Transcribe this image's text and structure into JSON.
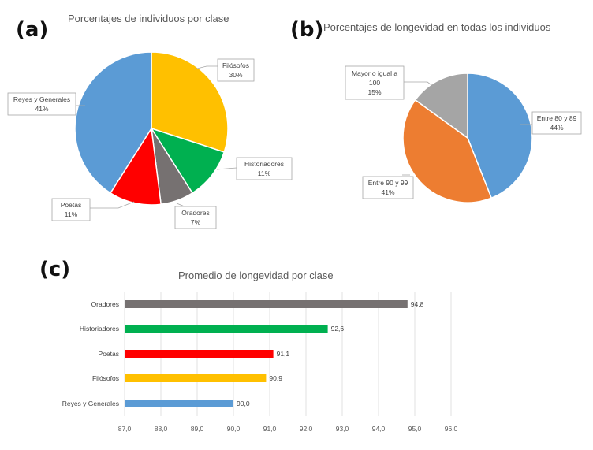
{
  "panels": {
    "a": "(a)",
    "b": "(b)",
    "c": "(c)"
  },
  "chart_data": [
    {
      "type": "pie",
      "title": "Porcentajes de individuos por clase",
      "slices": [
        {
          "label": "Filósofos",
          "value": 30,
          "display": "30%",
          "color": "#FFC000"
        },
        {
          "label": "Historiadores",
          "value": 11,
          "display": "11%",
          "color": "#00B050"
        },
        {
          "label": "Oradores",
          "value": 7,
          "display": "7%",
          "color": "#767171"
        },
        {
          "label": "Poetas",
          "value": 11,
          "display": "11%",
          "color": "#FF0000"
        },
        {
          "label": "Reyes y Generales",
          "value": 41,
          "display": "41%",
          "color": "#5B9BD5"
        }
      ]
    },
    {
      "type": "pie",
      "title": "Porcentajes de longevidad en todas los individuos",
      "slices": [
        {
          "label": "Entre 80 y 89",
          "value": 44,
          "display": "44%",
          "color": "#5B9BD5"
        },
        {
          "label": "Entre 90 y 99",
          "value": 41,
          "display": "41%",
          "color": "#ED7D31"
        },
        {
          "label": "Mayor o igual a",
          "label2": "100",
          "value": 15,
          "display": "15%",
          "color": "#A5A5A5"
        }
      ]
    },
    {
      "type": "bar",
      "orientation": "horizontal",
      "title": "Promedio de longevidad por clase",
      "categories": [
        "Oradores",
        "Historiadores",
        "Poetas",
        "Filósofos",
        "Reyes y Generales"
      ],
      "values": [
        94.8,
        92.6,
        91.1,
        90.9,
        90.0
      ],
      "value_labels": [
        "94,8",
        "92,6",
        "91,1",
        "90,9",
        "90,0"
      ],
      "colors": [
        "#767171",
        "#00B050",
        "#FF0000",
        "#FFC000",
        "#5B9BD5"
      ],
      "xlim": [
        87,
        96
      ],
      "xticks": [
        87,
        88,
        89,
        90,
        91,
        92,
        93,
        94,
        95,
        96
      ],
      "xtick_labels": [
        "87,0",
        "88,0",
        "89,0",
        "90,0",
        "91,0",
        "92,0",
        "93,0",
        "94,0",
        "95,0",
        "96,0"
      ],
      "grid": true
    }
  ]
}
